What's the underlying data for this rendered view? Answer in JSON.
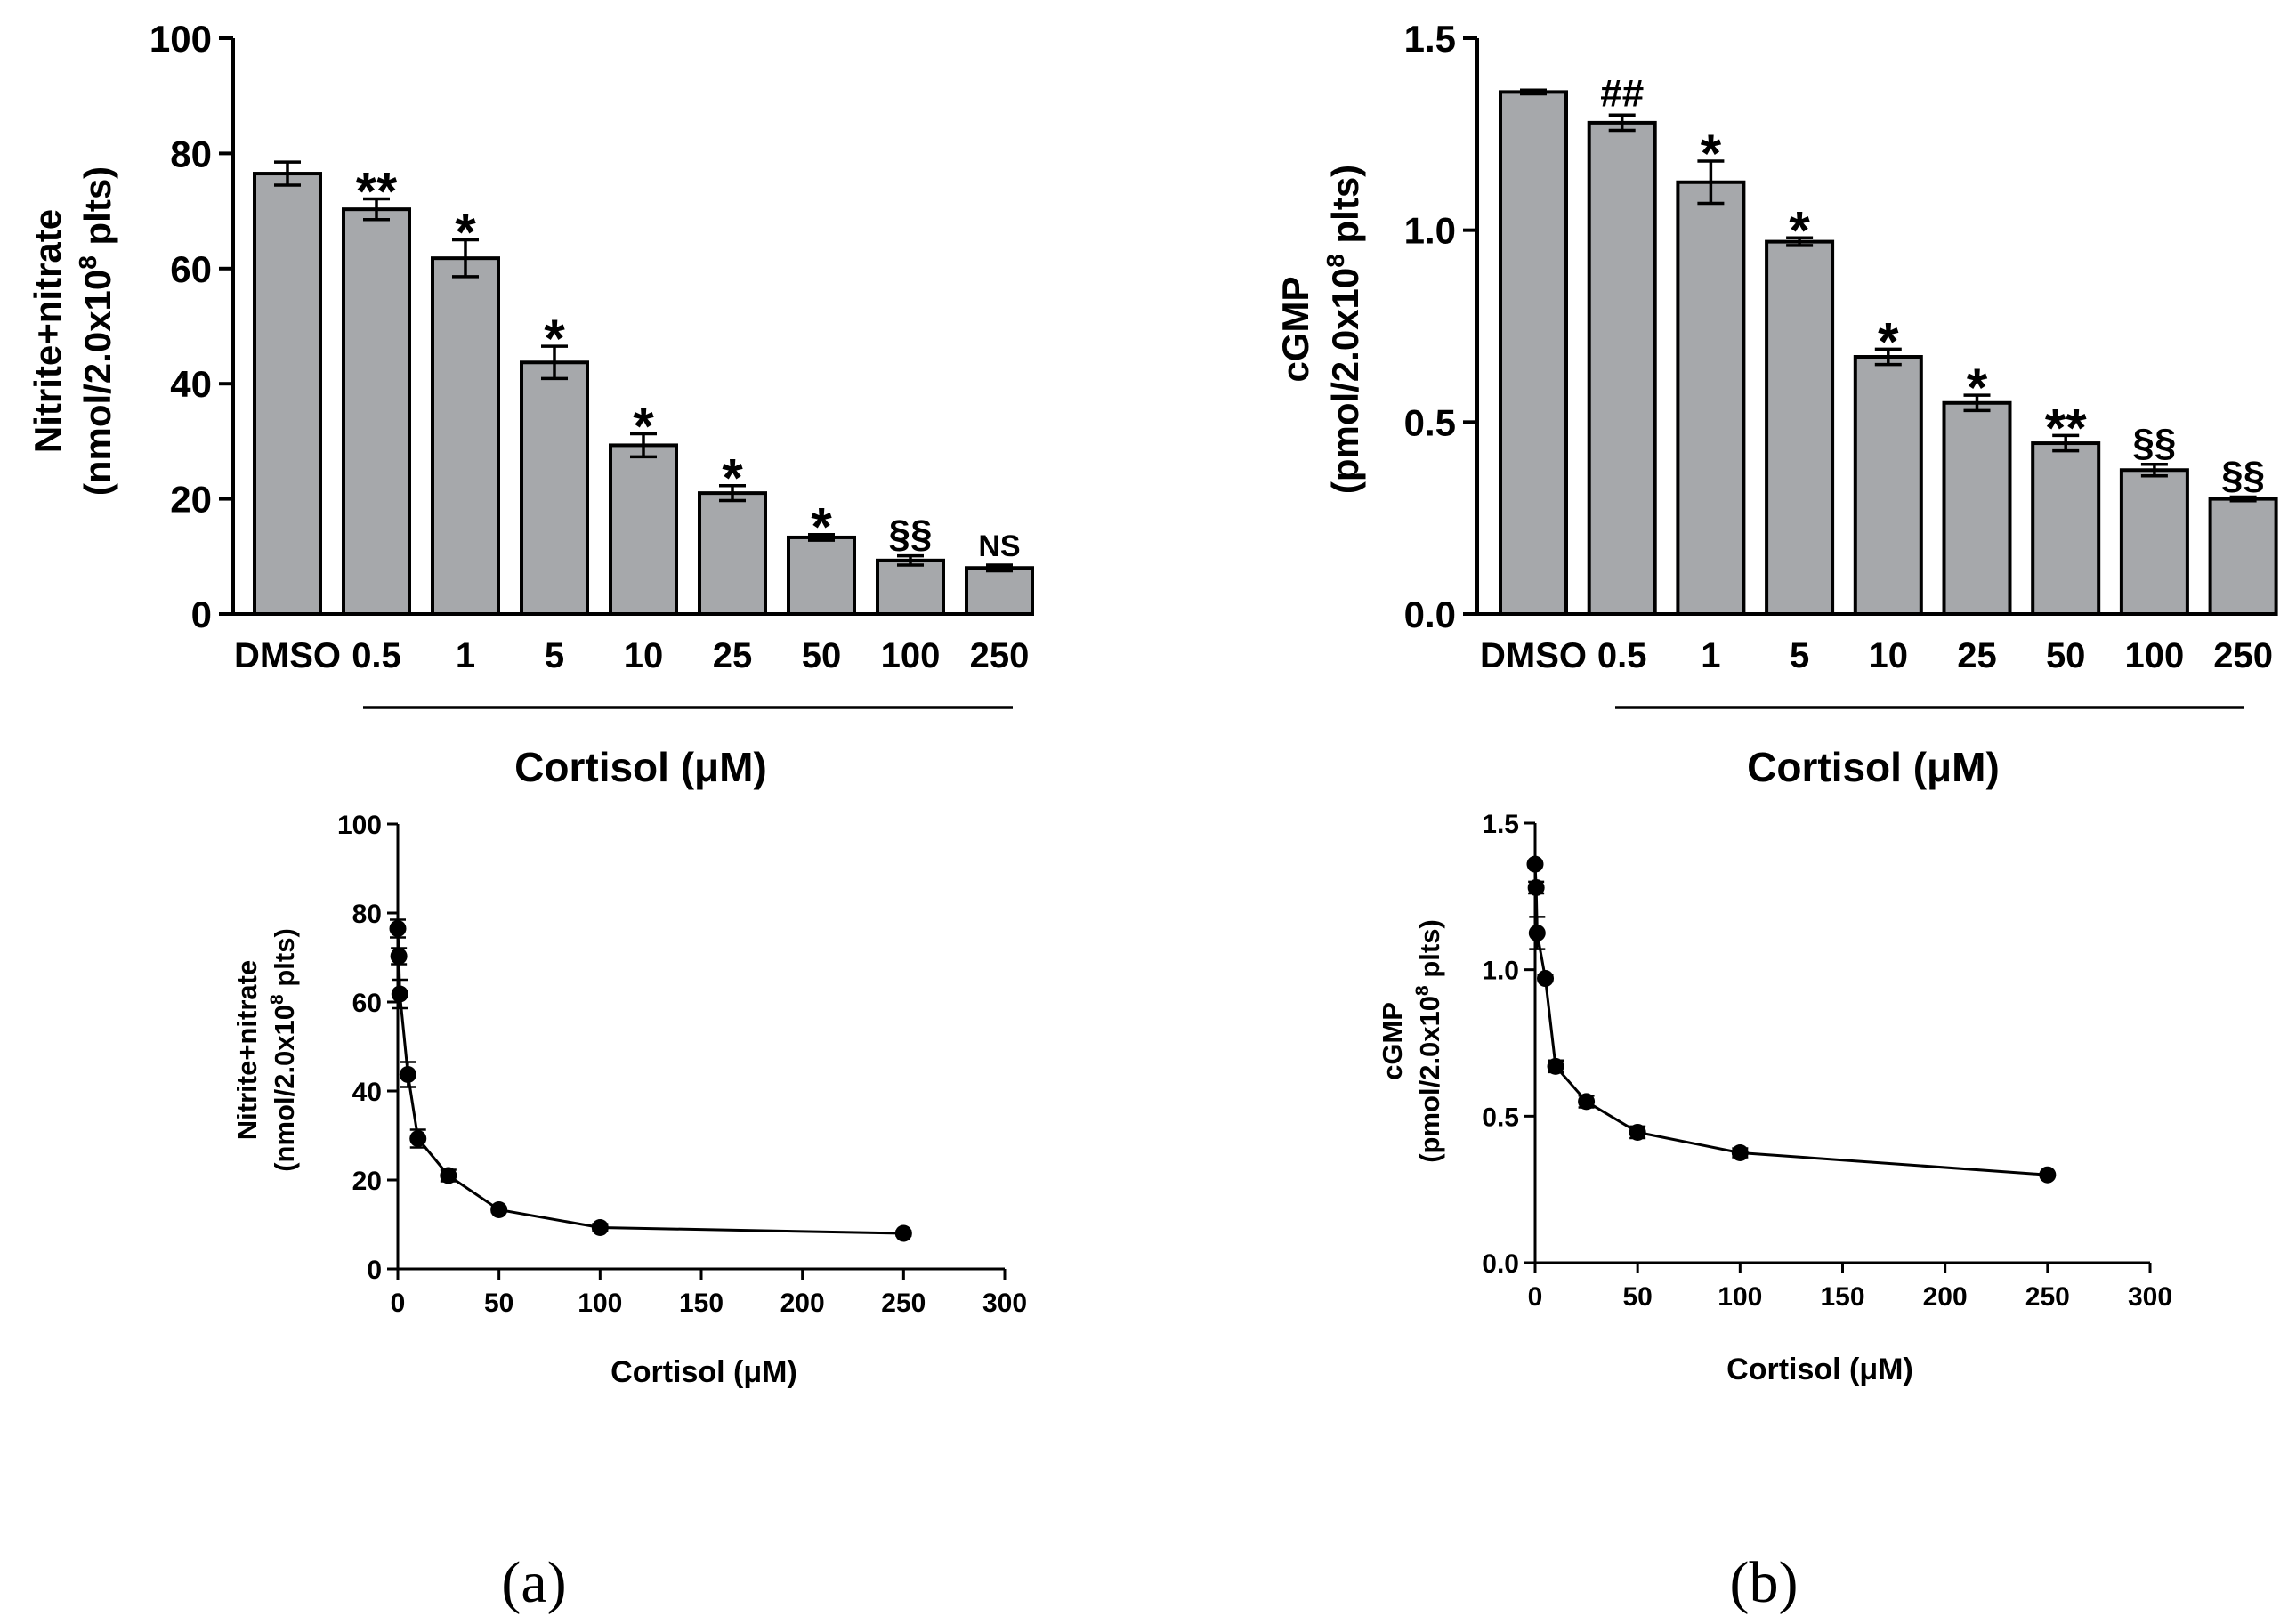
{
  "figure": {
    "panel_labels": [
      "(a)",
      "(b)"
    ]
  },
  "chart_data": [
    {
      "id": "a-bar",
      "type": "bar",
      "categories": [
        "DMSO",
        "0.5",
        "1",
        "5",
        "10",
        "25",
        "50",
        "100",
        "250"
      ],
      "values": [
        76.5,
        70.3,
        61.8,
        43.7,
        29.3,
        21.0,
        13.3,
        9.3,
        8.0
      ],
      "errors": [
        2.0,
        1.8,
        3.2,
        2.8,
        2.0,
        1.3,
        0.5,
        0.8,
        0.5
      ],
      "annotations": [
        "",
        "**",
        "*",
        "*",
        "*",
        "*",
        "*",
        "§§",
        "NS"
      ],
      "ylabel_line1": "Nitrite+nitrate",
      "ylabel_line2_pre": "(nmol/2.0x10",
      "ylabel_sup": "8",
      "ylabel_line2_post": " plts)",
      "xlabel": "Cortisol (μM)",
      "ylim": [
        0,
        100
      ],
      "yticks": [
        "0",
        "20",
        "40",
        "60",
        "80",
        "100"
      ],
      "grid": false,
      "colors": {
        "bar": "#a6a8ab",
        "stroke": "#000000"
      }
    },
    {
      "id": "b-bar",
      "type": "bar",
      "categories": [
        "DMSO",
        "0.5",
        "1",
        "5",
        "10",
        "25",
        "50",
        "100",
        "250"
      ],
      "values": [
        1.36,
        1.28,
        1.125,
        0.97,
        0.67,
        0.55,
        0.445,
        0.375,
        0.3
      ],
      "errors": [
        0.005,
        0.02,
        0.055,
        0.01,
        0.02,
        0.02,
        0.02,
        0.015,
        0.005
      ],
      "annotations": [
        "",
        "##",
        "*",
        "*",
        "*",
        "*",
        "**",
        "§§",
        "§§"
      ],
      "ylabel_line1": "cGMP",
      "ylabel_line2_pre": "(pmol/2.0x10",
      "ylabel_sup": "8",
      "ylabel_line2_post": " plts)",
      "xlabel": "Cortisol (μM)",
      "ylim": [
        0,
        1.5
      ],
      "yticks": [
        "0.0",
        "0.5",
        "1.0",
        "1.5"
      ],
      "grid": false,
      "colors": {
        "bar": "#a6a8ab",
        "stroke": "#000000"
      }
    },
    {
      "id": "a-line",
      "type": "line",
      "x": [
        0,
        0.5,
        1,
        5,
        10,
        25,
        50,
        100,
        250
      ],
      "y": [
        76.5,
        70.3,
        61.8,
        43.7,
        29.3,
        21.0,
        13.3,
        9.3,
        8.0
      ],
      "errors": [
        2.0,
        1.8,
        3.2,
        2.8,
        2.0,
        1.3,
        0.5,
        0.8,
        0.5
      ],
      "ylabel_line1": "Nitrite+nitrate",
      "ylabel_line2_pre": "(nmol/2.0x10",
      "ylabel_sup": "8",
      "ylabel_line2_post": " plts)",
      "xlabel": "Cortisol (μM)",
      "xlim": [
        0,
        300
      ],
      "ylim": [
        0,
        100
      ],
      "xticks": [
        "0",
        "50",
        "100",
        "150",
        "200",
        "250",
        "300"
      ],
      "yticks": [
        "0",
        "20",
        "40",
        "60",
        "80",
        "100"
      ],
      "grid": false,
      "colors": {
        "marker": "#000000"
      }
    },
    {
      "id": "b-line",
      "type": "line",
      "x": [
        0,
        0.5,
        1,
        5,
        10,
        25,
        50,
        100,
        250
      ],
      "y": [
        1.36,
        1.28,
        1.125,
        0.97,
        0.67,
        0.55,
        0.445,
        0.375,
        0.3
      ],
      "errors": [
        0.005,
        0.02,
        0.055,
        0.01,
        0.02,
        0.02,
        0.02,
        0.015,
        0.005
      ],
      "ylabel_line1": "cGMP",
      "ylabel_line2_pre": "(pmol/2.0x10",
      "ylabel_sup": "8",
      "ylabel_line2_post": " plts)",
      "xlabel": "Cortisol (μM)",
      "xlim": [
        0,
        300
      ],
      "ylim": [
        0,
        1.5
      ],
      "xticks": [
        "0",
        "50",
        "100",
        "150",
        "200",
        "250",
        "300"
      ],
      "yticks": [
        "0.0",
        "0.5",
        "1.0",
        "1.5"
      ],
      "grid": false,
      "colors": {
        "marker": "#000000"
      }
    }
  ]
}
